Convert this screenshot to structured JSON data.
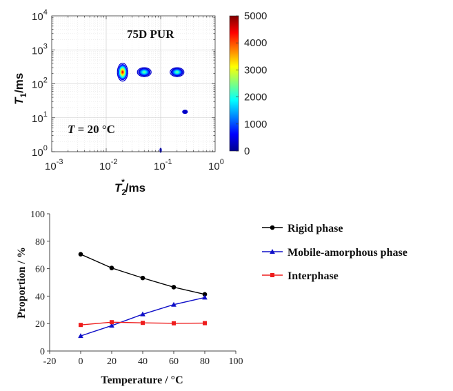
{
  "chart_data": [
    {
      "type": "heatmap",
      "title": "75D PUR",
      "annotation": {
        "prefix": "T",
        "text": " = 20 °C"
      },
      "xlabel": {
        "main": "T",
        "sub": "2",
        "sup": "*",
        "unit": "/ms"
      },
      "ylabel": {
        "main": "T",
        "sub": "1",
        "unit": "/ms"
      },
      "x_scale": "log",
      "y_scale": "log",
      "xlim": [
        0.001,
        1
      ],
      "ylim": [
        1,
        10000
      ],
      "x_ticks": [
        {
          "value": 0.001,
          "base": "10",
          "exp": "-3"
        },
        {
          "value": 0.01,
          "base": "10",
          "exp": "-2"
        },
        {
          "value": 0.1,
          "base": "10",
          "exp": "-1"
        },
        {
          "value": 1,
          "base": "10",
          "exp": "0"
        }
      ],
      "y_ticks": [
        {
          "value": 1,
          "base": "10",
          "exp": "0"
        },
        {
          "value": 10,
          "base": "10",
          "exp": "1"
        },
        {
          "value": 100,
          "base": "10",
          "exp": "2"
        },
        {
          "value": 1000,
          "base": "10",
          "exp": "3"
        },
        {
          "value": 10000,
          "base": "10",
          "exp": "4"
        }
      ],
      "colorbar": {
        "range": [
          0,
          5000
        ],
        "ticks": [
          "0",
          "1000",
          "2000",
          "3000",
          "4000",
          "5000"
        ],
        "colormap": "jet"
      },
      "peaks": [
        {
          "t2": 0.02,
          "t1": 220,
          "intensity": 4300
        },
        {
          "t2": 0.05,
          "t1": 220,
          "intensity": 2400
        },
        {
          "t2": 0.2,
          "t1": 220,
          "intensity": 2400
        },
        {
          "t2": 0.28,
          "t1": 15,
          "intensity": 300
        },
        {
          "t2": 0.1,
          "t1": 1.1,
          "intensity": 100
        }
      ],
      "grid": true
    },
    {
      "type": "line",
      "xlabel": "Temperature / °C",
      "ylabel": "Proportion / %",
      "xlim": [
        -20,
        100
      ],
      "ylim": [
        0,
        100
      ],
      "x_ticks": [
        "-20",
        "0",
        "20",
        "40",
        "60",
        "80",
        "100"
      ],
      "y_ticks": [
        "0",
        "20",
        "40",
        "60",
        "80",
        "100"
      ],
      "x": [
        0,
        20,
        40,
        60,
        80
      ],
      "series": [
        {
          "name": "Rigid phase",
          "values": [
            70.5,
            60.5,
            53.2,
            46.5,
            41.3
          ],
          "color": "#000000",
          "marker": "circle"
        },
        {
          "name": "Mobile-amorphous phase",
          "values": [
            11,
            18.5,
            26.8,
            33.8,
            39
          ],
          "color": "#1010c8",
          "marker": "triangle"
        },
        {
          "name": "Interphase",
          "values": [
            19,
            21,
            20.5,
            20.2,
            20.3
          ],
          "color": "#ee1c1c",
          "marker": "square"
        }
      ],
      "legend_position": "right",
      "grid": false
    }
  ]
}
